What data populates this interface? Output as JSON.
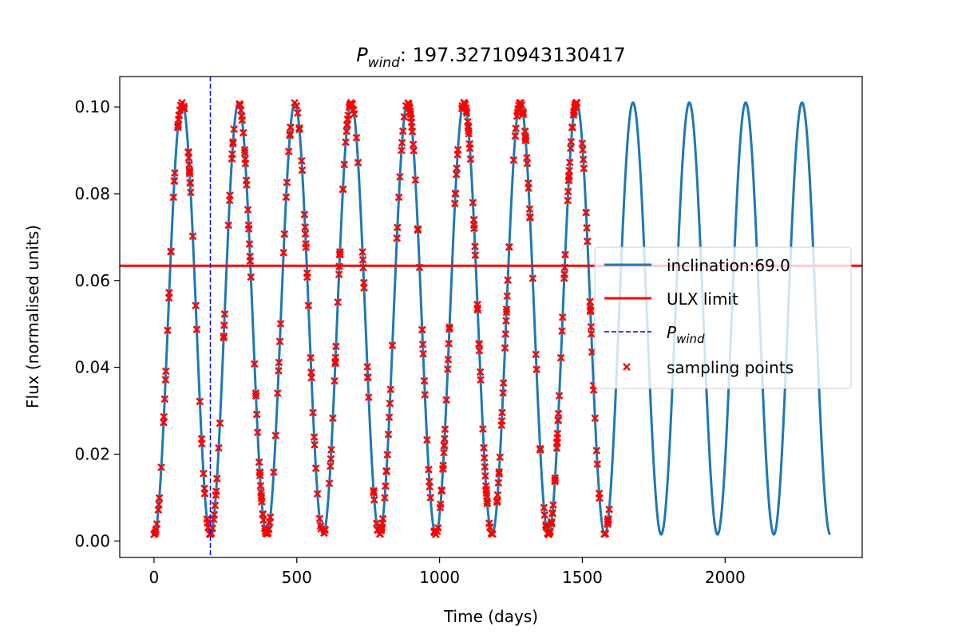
{
  "chart_data": {
    "type": "line",
    "title": {
      "symbol": "P",
      "subscript": "wind",
      "separator": ": ",
      "value": "197.32710943130417"
    },
    "xlabel": "Time (days)",
    "ylabel": "Flux (normalised units)",
    "xlim": [
      -120,
      2480
    ],
    "ylim": [
      -0.0038,
      0.107
    ],
    "xticks": [
      0,
      500,
      1000,
      1500,
      2000
    ],
    "xtick_labels": [
      "0",
      "500",
      "1000",
      "1500",
      "2000"
    ],
    "yticks": [
      0.0,
      0.02,
      0.04,
      0.06,
      0.08,
      0.1
    ],
    "ytick_labels": [
      "0.00",
      "0.02",
      "0.04",
      "0.06",
      "0.08",
      "0.10"
    ],
    "grid": false,
    "legend_position": "center-right",
    "curve": {
      "name": "inclination:69.0",
      "color": "#1f77b4",
      "model": "periodic",
      "period": 197.32710943130417,
      "peak_times": [
        98.7,
        296.0,
        493.3,
        690.6,
        888.0,
        1085.3,
        1282.6,
        1480.0,
        1677.3,
        1874.6,
        2071.9,
        2269.3
      ],
      "min_value": 0.0015,
      "max_value": 0.101,
      "x_range": [
        0,
        2368
      ]
    },
    "ulx_limit": {
      "name": "ULX limit",
      "value": 0.0634,
      "color": "#ff0000"
    },
    "p_wind_line": {
      "name": "P_wind",
      "name_symbol": "P",
      "name_subscript": "wind",
      "x": 197.32710943130417,
      "color": "#0000ff"
    },
    "sampling_points": {
      "name": "sampling points",
      "color": "#ff0000",
      "marker": "x",
      "x_range": [
        0,
        1600
      ],
      "count": 500,
      "seed": 7
    }
  }
}
